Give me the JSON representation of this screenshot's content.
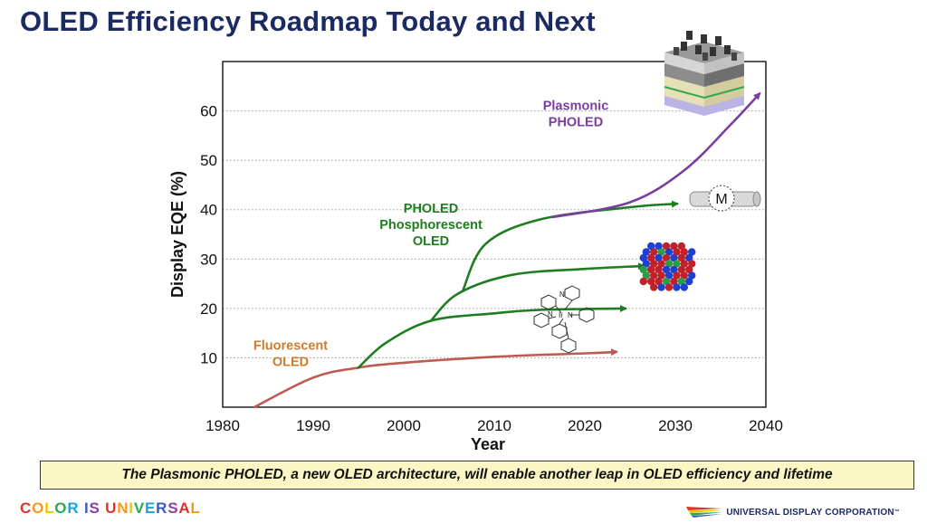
{
  "slide": {
    "title": "OLED Efficiency Roadmap Today and Next",
    "caption": "The Plasmonic PHOLED, a new OLED architecture, will enable another leap in OLED efficiency and lifetime",
    "brand_tagline": "COLOR IS UNIVERSAL",
    "brand_colors": [
      "#e4312b",
      "#f39a1d",
      "#f2c500",
      "#2fa84f",
      "#1aa4d9",
      "#3b5bc6",
      "#8c3fa3"
    ],
    "company": "UNIVERSAL DISPLAY CORPORATION",
    "company_mark": "™"
  },
  "chart_data": {
    "type": "line",
    "title": "",
    "xlabel": "Year",
    "ylabel": "Display EQE (%)",
    "xlim": [
      1980,
      2040
    ],
    "ylim": [
      0,
      70
    ],
    "xticks": [
      1980,
      1990,
      2000,
      2010,
      2020,
      2030,
      2040
    ],
    "yticks": [
      10,
      20,
      30,
      40,
      50,
      60
    ],
    "grid": "horizontal dotted",
    "series": [
      {
        "name": "Fluorescent OLED",
        "color": "#bf5a52",
        "points": [
          [
            1983.5,
            0
          ],
          [
            1990,
            6
          ],
          [
            1995,
            8
          ],
          [
            2000,
            9
          ],
          [
            2010,
            10.2
          ],
          [
            2020,
            10.9
          ],
          [
            2023.5,
            11.2
          ]
        ]
      },
      {
        "name": "PHOLED Phosphorescent OLED",
        "color": "#1e7d1e",
        "points": [
          [
            1995,
            8
          ],
          [
            1998,
            13
          ],
          [
            2003,
            17.5
          ],
          [
            2010,
            19
          ],
          [
            2015,
            19.7
          ],
          [
            2024.5,
            20
          ]
        ]
      },
      {
        "name": "PHOLED Phosphorescent OLED",
        "color": "#1e7d1e",
        "points": [
          [
            2003,
            17.5
          ],
          [
            2006,
            23
          ],
          [
            2012,
            26.8
          ],
          [
            2020,
            28
          ],
          [
            2026.5,
            28.6
          ]
        ]
      },
      {
        "name": "PHOLED Phosphorescent OLED",
        "color": "#1e7d1e",
        "points": [
          [
            2006.5,
            23.5
          ],
          [
            2009,
            33
          ],
          [
            2015,
            38
          ],
          [
            2025,
            40.5
          ],
          [
            2030.2,
            41.2
          ]
        ]
      },
      {
        "name": "Plasmonic PHOLED",
        "color": "#7a3ea0",
        "points": [
          [
            2016.5,
            38.5
          ],
          [
            2025,
            41.5
          ],
          [
            2031,
            48
          ],
          [
            2036,
            57
          ],
          [
            2039.3,
            63.5
          ]
        ]
      }
    ],
    "annotations": [
      {
        "lines": [
          "Fluorescent",
          "OLED"
        ],
        "color": "#d07a2d",
        "x": 1987.5,
        "y": 11.6
      },
      {
        "lines": [
          "PHOLED",
          "Phosphorescent",
          "OLED"
        ],
        "color": "#1e7d1e",
        "x": 2003,
        "y": 39.4
      },
      {
        "lines": [
          "Plasmonic",
          "PHOLED"
        ],
        "color": "#7a3ea0",
        "x": 2019,
        "y": 60.2
      }
    ],
    "molecule_atom_labels": [
      "N",
      "N",
      "Ir",
      "N"
    ],
    "motif_label": "M"
  }
}
